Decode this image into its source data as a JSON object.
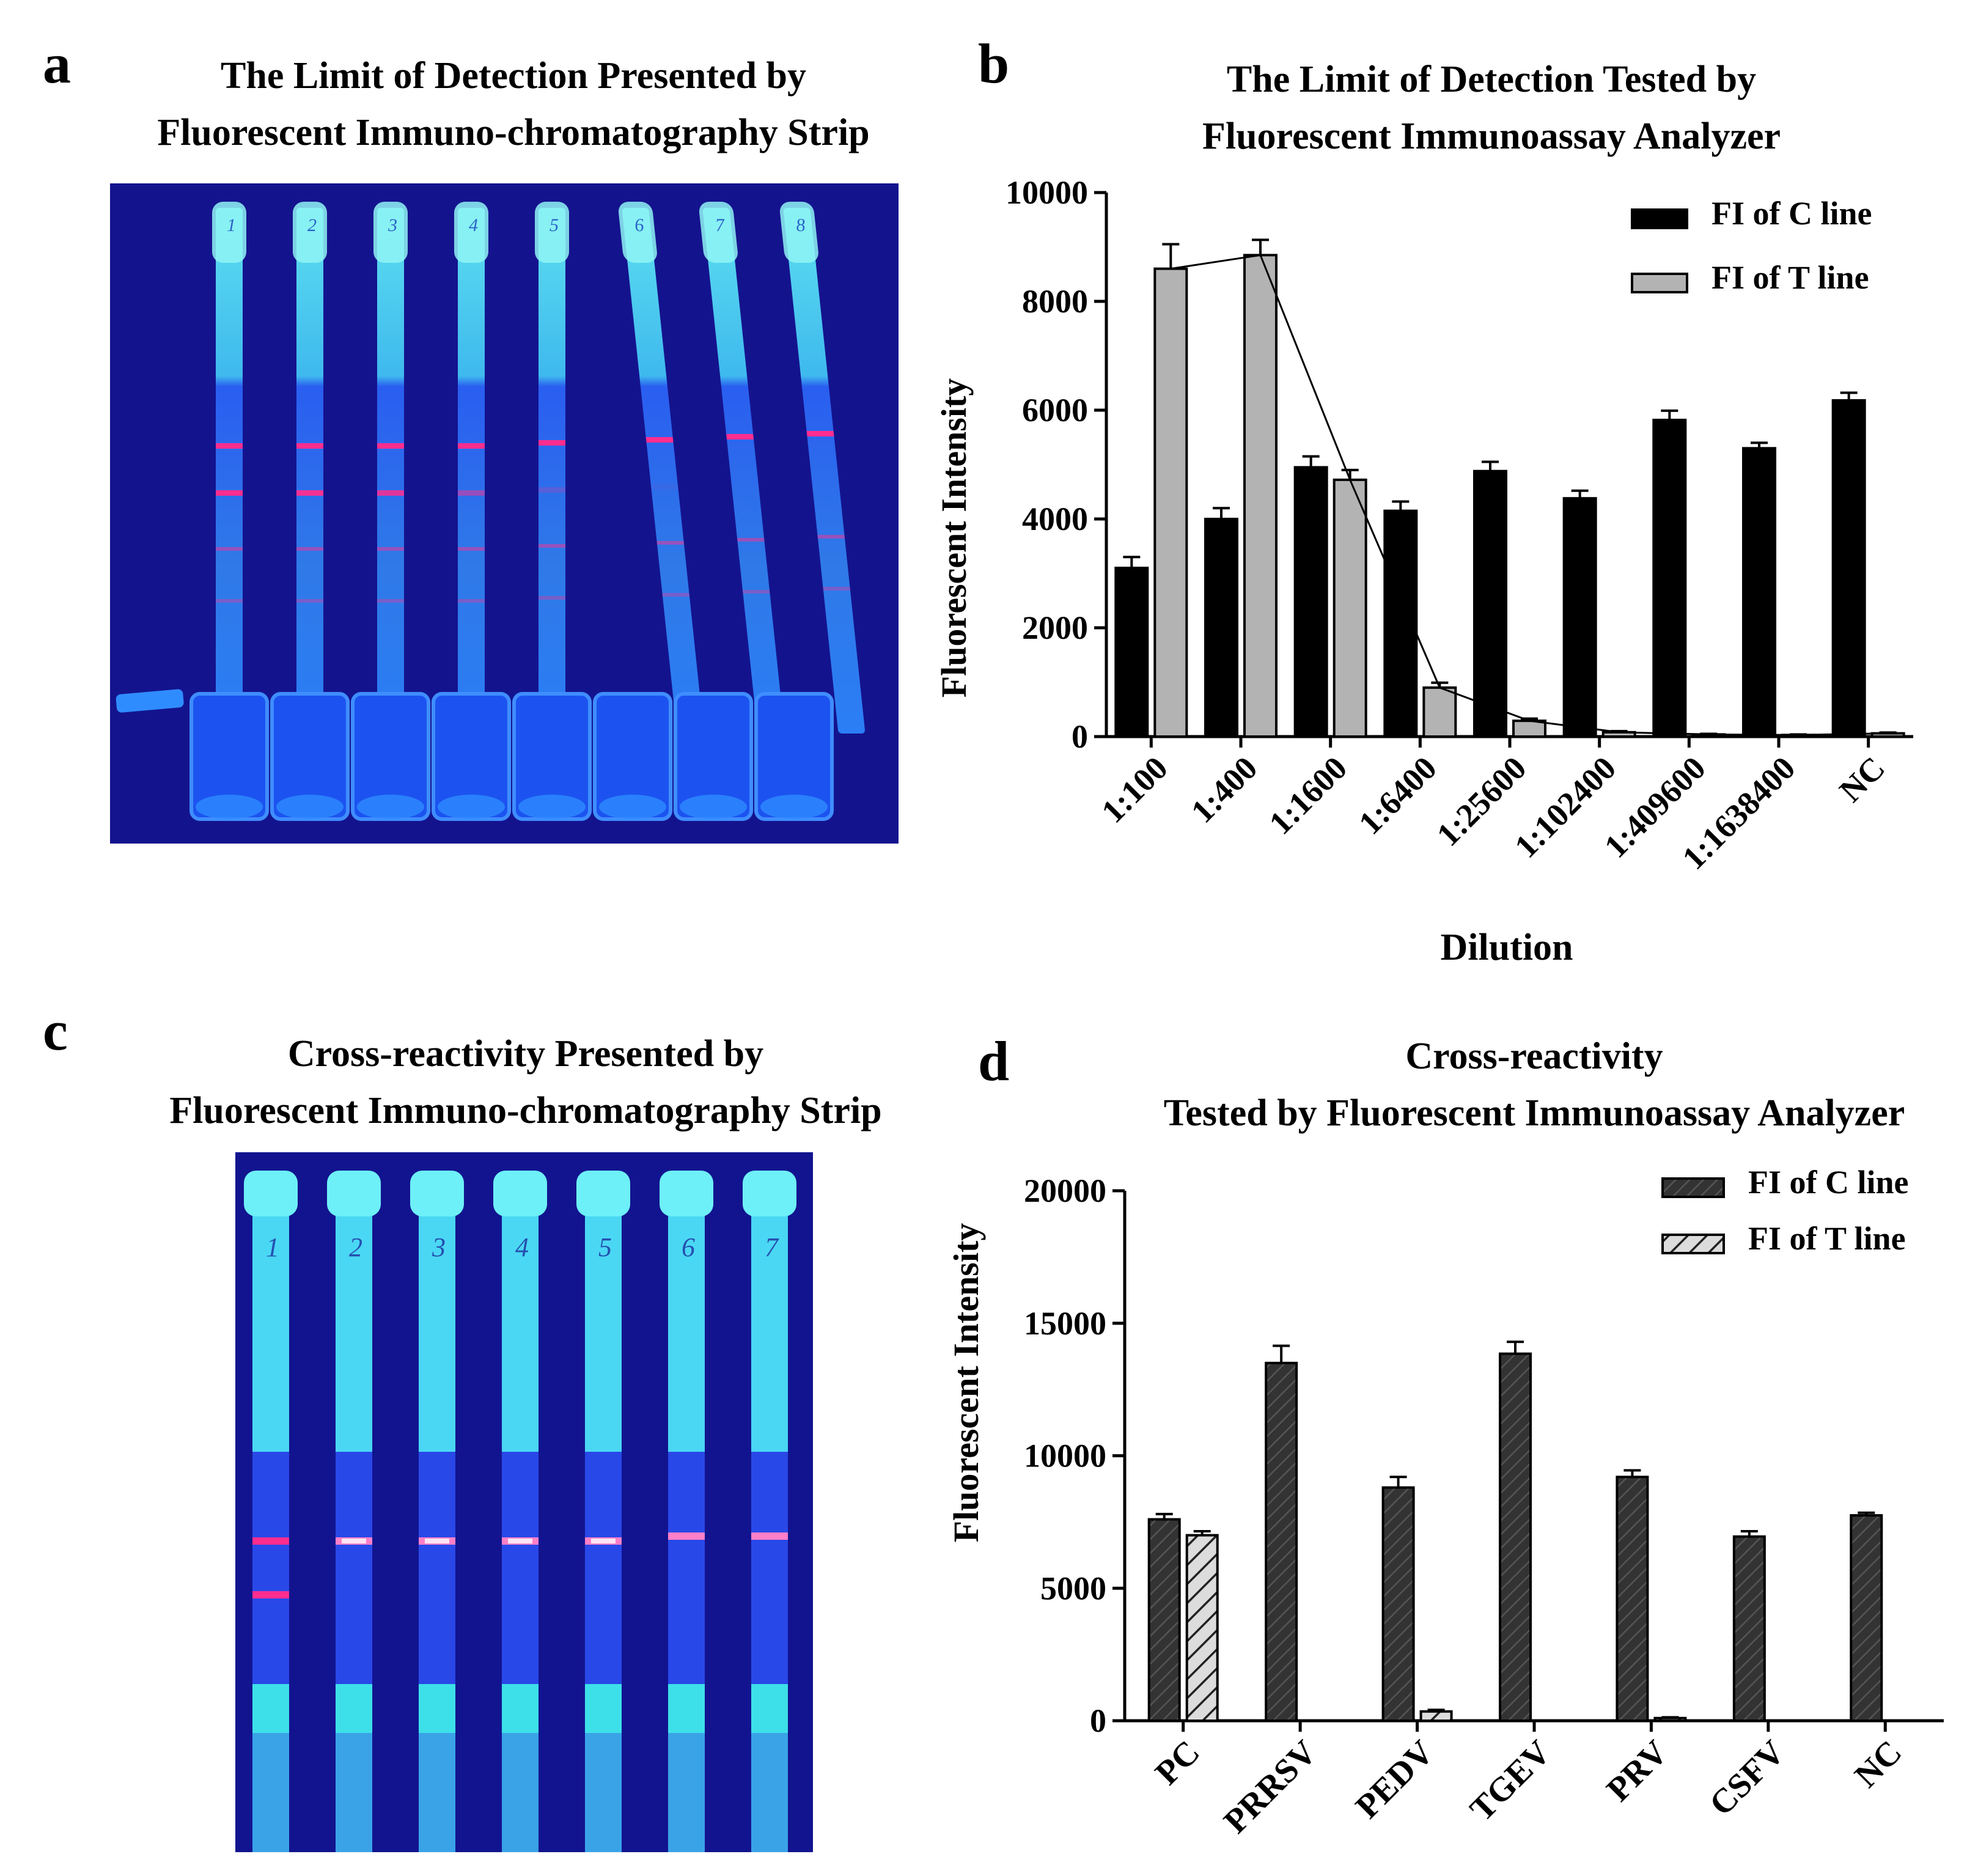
{
  "panels": {
    "a": {
      "letter": "a",
      "title_line1": "The Limit of Detection Presented by",
      "title_line2": "Fluorescent Immuno-chromatography Strip",
      "strip_labels": [
        "1",
        "2",
        "3",
        "4",
        "5",
        "6",
        "7",
        "8"
      ]
    },
    "c": {
      "letter": "c",
      "title_line1": "Cross-reactivity Presented by",
      "title_line2": "Fluorescent Immuno-chromatography Strip",
      "strip_labels": [
        "1",
        "2",
        "3",
        "4",
        "5",
        "6",
        "7"
      ]
    },
    "b": {
      "letter": "b"
    },
    "d": {
      "letter": "d"
    }
  },
  "colors": {
    "photo_bg": "#12148f",
    "strip": "#27b4ef",
    "strip_top": "#34d6f2",
    "line_pink": "#ff2d8f",
    "bar_c": "#000000",
    "bar_t": "#b3b3b3",
    "bar_d_c": "#333333"
  },
  "chart_data": [
    {
      "panel": "b",
      "type": "bar",
      "title": "The Limit of Detection Tested by Fluorescent Immunoassay Analyzer",
      "title_line1": "The Limit of Detection Tested by",
      "title_line2": "Fluorescent Immunoassay Analyzer",
      "xlabel": "Dilution",
      "ylabel": "Fluorescent Intensity",
      "ylim": [
        0,
        10000
      ],
      "yticks": [
        "0",
        "2000",
        "4000",
        "6000",
        "8000",
        "10000"
      ],
      "ytick_values": [
        0,
        2000,
        4000,
        6000,
        8000,
        10000
      ],
      "categories": [
        "1:100",
        "1:400",
        "1:1600",
        "1:6400",
        "1:25600",
        "1:102400",
        "1:409600",
        "1:1638400",
        "NC"
      ],
      "series": [
        {
          "name": "FI of C line",
          "values": [
            3100,
            4000,
            4950,
            4150,
            4880,
            4380,
            5820,
            5300,
            6180
          ],
          "errors": [
            200,
            200,
            200,
            170,
            170,
            140,
            170,
            100,
            140
          ]
        },
        {
          "name": "FI of T line",
          "values": [
            8600,
            8850,
            4720,
            900,
            290,
            80,
            40,
            30,
            60
          ],
          "errors": [
            450,
            280,
            180,
            90,
            40,
            20,
            10,
            10,
            15
          ]
        }
      ],
      "trendline_on": "FI of T line",
      "legend": [
        "FI of C line",
        "FI of T line"
      ],
      "legend_position": "top-right"
    },
    {
      "panel": "d",
      "type": "bar",
      "title": "Cross-reactivity Tested by Fluorescent Immunoassay Analyzer",
      "title_line1": "Cross-reactivity",
      "title_line2": "Tested by Fluorescent Immunoassay Analyzer",
      "xlabel": "",
      "ylabel": "Fluorescent Intensity",
      "ylim": [
        0,
        20000
      ],
      "yticks": [
        "0",
        "5000",
        "10000",
        "15000",
        "20000"
      ],
      "ytick_values": [
        0,
        5000,
        10000,
        15000,
        20000
      ],
      "categories": [
        "PC",
        "PRRSV",
        "PEDV",
        "TGEV",
        "PRV",
        "CSFV",
        "NC"
      ],
      "series": [
        {
          "name": "FI of C line",
          "values": [
            7600,
            13500,
            8800,
            13850,
            9200,
            6950,
            7750
          ],
          "errors": [
            200,
            650,
            400,
            450,
            250,
            200,
            100
          ]
        },
        {
          "name": "FI of T line",
          "values": [
            7000,
            0,
            350,
            0,
            100,
            0,
            0
          ],
          "errors": [
            150,
            0,
            60,
            0,
            30,
            0,
            0
          ]
        }
      ],
      "legend": [
        "FI of C line",
        "FI of T line"
      ],
      "legend_position": "top-right"
    }
  ]
}
